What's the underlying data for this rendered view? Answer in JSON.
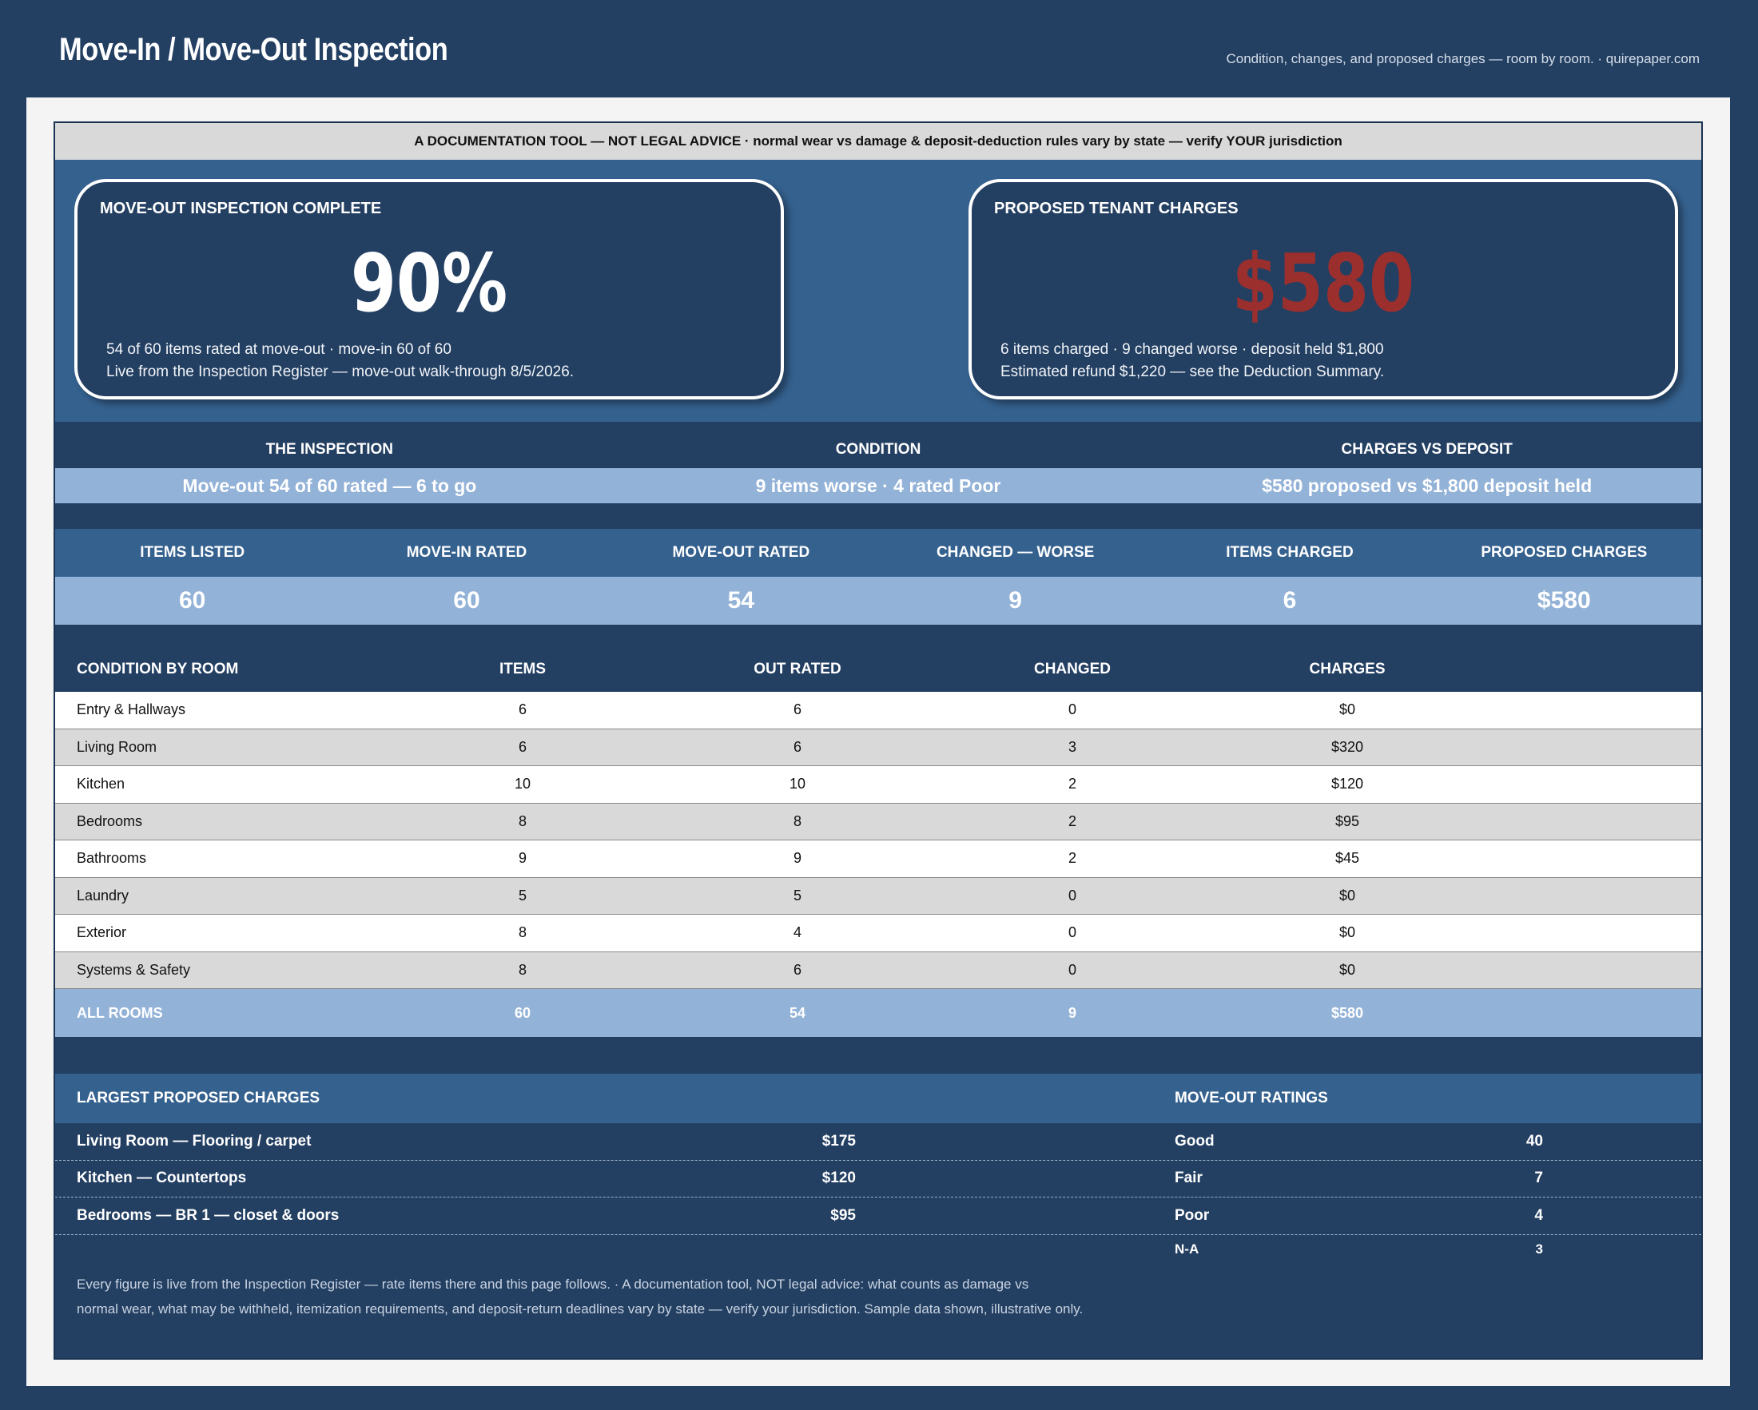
{
  "header": {
    "title": "Move-In / Move-Out Inspection",
    "tagline": "Condition, changes, and proposed charges — room by room.  ·  quirepaper.com"
  },
  "disclaimer": "A DOCUMENTATION TOOL — NOT LEGAL ADVICE  ·  normal wear vs damage & deposit-deduction rules vary by state — verify YOUR jurisdiction",
  "kpi": {
    "inspection": {
      "label": "MOVE-OUT INSPECTION COMPLETE",
      "value": "90%",
      "note_line1": "54 of 60 items rated at move-out  ·  move-in 60 of 60",
      "note_line2": "Live from the Inspection Register — move-out walk-through 8/5/2026."
    },
    "charges": {
      "label": "PROPOSED TENANT CHARGES",
      "value": "$580",
      "note_line1": "6 items charged  ·  9 changed worse  ·  deposit held $1,800",
      "note_line2": "Estimated refund $1,220 — see the Deduction Summary."
    }
  },
  "summary": {
    "heads": [
      "THE INSPECTION",
      "CONDITION",
      "CHARGES VS DEPOSIT"
    ],
    "values": [
      "Move-out 54 of 60 rated — 6 to go",
      "9 items worse  ·  4 rated Poor",
      "$580 proposed vs $1,800 deposit held"
    ]
  },
  "stats": {
    "heads": [
      "ITEMS LISTED",
      "MOVE-IN RATED",
      "MOVE-OUT RATED",
      "CHANGED — WORSE",
      "ITEMS CHARGED",
      "PROPOSED CHARGES"
    ],
    "values": [
      "60",
      "60",
      "54",
      "9",
      "6",
      "$580"
    ]
  },
  "room_table": {
    "headers": [
      "CONDITION BY ROOM",
      "ITEMS",
      "OUT RATED",
      "CHANGED",
      "CHARGES"
    ],
    "rows": [
      [
        "Entry & Hallways",
        "6",
        "6",
        "0",
        "$0"
      ],
      [
        "Living Room",
        "6",
        "6",
        "3",
        "$320"
      ],
      [
        "Kitchen",
        "10",
        "10",
        "2",
        "$120"
      ],
      [
        "Bedrooms",
        "8",
        "8",
        "2",
        "$95"
      ],
      [
        "Bathrooms",
        "9",
        "9",
        "2",
        "$45"
      ],
      [
        "Laundry",
        "5",
        "5",
        "0",
        "$0"
      ],
      [
        "Exterior",
        "8",
        "4",
        "0",
        "$0"
      ],
      [
        "Systems & Safety",
        "8",
        "6",
        "0",
        "$0"
      ]
    ],
    "total": [
      "ALL ROOMS",
      "60",
      "54",
      "9",
      "$580"
    ]
  },
  "largest_charges": {
    "heading": "LARGEST PROPOSED CHARGES",
    "items": [
      {
        "label": "Living Room — Flooring / carpet",
        "amount": "$175"
      },
      {
        "label": "Kitchen — Countertops",
        "amount": "$120"
      },
      {
        "label": "Bedrooms — BR 1 — closet & doors",
        "amount": "$95"
      }
    ]
  },
  "move_out_ratings": {
    "heading": "MOVE-OUT RATINGS",
    "items": [
      {
        "label": "Good",
        "count": "40"
      },
      {
        "label": "Fair",
        "count": "7"
      },
      {
        "label": "Poor",
        "count": "4"
      },
      {
        "label": "N-A",
        "count": "3"
      }
    ]
  },
  "footnote": {
    "line1": "Every figure is live from the Inspection Register — rate items there and this page follows.  ·  A documentation tool, NOT legal advice: what counts as damage vs",
    "line2": "normal wear, what may be withheld, itemization requirements, and deposit-return deadlines vary by state — verify your jurisdiction. Sample data shown, illustrative only."
  },
  "colors": {
    "navy": "#233f62",
    "mid_blue": "#35618f",
    "light_blue": "#93b2d7",
    "charge_red": "#9a2f2e"
  }
}
